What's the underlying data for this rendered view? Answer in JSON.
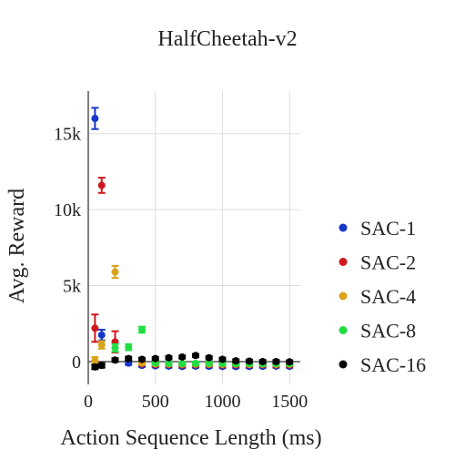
{
  "chart_data": {
    "type": "scatter",
    "title": "HalfCheetah-v2",
    "xlabel": "Action Sequence Length (ms)",
    "ylabel": "Avg. Reward",
    "xlim": [
      0,
      1580
    ],
    "ylim": [
      -1500,
      17800
    ],
    "xticks": [
      0,
      500,
      1000,
      1500
    ],
    "xtick_labels": [
      "0",
      "500",
      "1000",
      "1500"
    ],
    "yticks": [
      0,
      5000,
      10000,
      15000
    ],
    "ytick_labels": [
      "0",
      "5k",
      "10k",
      "15k"
    ],
    "grid": true,
    "legend_position": "right",
    "series": [
      {
        "name": "SAC-1",
        "color": "#1636c8",
        "points": [
          {
            "x": 50,
            "y": 16000,
            "err": 700
          },
          {
            "x": 100,
            "y": 1750,
            "err": 350
          },
          {
            "x": 300,
            "y": -100,
            "err": 120
          },
          {
            "x": 400,
            "y": -250,
            "err": 100
          },
          {
            "x": 500,
            "y": -280,
            "err": 100
          },
          {
            "x": 600,
            "y": -300,
            "err": 100
          },
          {
            "x": 700,
            "y": -320,
            "err": 100
          },
          {
            "x": 800,
            "y": -300,
            "err": 100
          },
          {
            "x": 900,
            "y": -310,
            "err": 100
          },
          {
            "x": 1000,
            "y": -320,
            "err": 100
          },
          {
            "x": 1100,
            "y": -330,
            "err": 100
          },
          {
            "x": 1200,
            "y": -320,
            "err": 100
          },
          {
            "x": 1300,
            "y": -310,
            "err": 100
          },
          {
            "x": 1400,
            "y": -300,
            "err": 100
          },
          {
            "x": 1500,
            "y": -310,
            "err": 100
          }
        ]
      },
      {
        "name": "SAC-2",
        "color": "#d0161e",
        "points": [
          {
            "x": 50,
            "y": 2200,
            "err": 900
          },
          {
            "x": 100,
            "y": 11600,
            "err": 500
          },
          {
            "x": 200,
            "y": 1300,
            "err": 700
          },
          {
            "x": 400,
            "y": -150,
            "err": 100
          },
          {
            "x": 500,
            "y": -200,
            "err": 100
          },
          {
            "x": 600,
            "y": -200,
            "err": 100
          },
          {
            "x": 700,
            "y": -220,
            "err": 100
          },
          {
            "x": 800,
            "y": -210,
            "err": 100
          },
          {
            "x": 900,
            "y": -200,
            "err": 100
          },
          {
            "x": 1000,
            "y": -230,
            "err": 100
          },
          {
            "x": 1100,
            "y": -220,
            "err": 100
          },
          {
            "x": 1200,
            "y": -220,
            "err": 100
          },
          {
            "x": 1300,
            "y": -210,
            "err": 100
          },
          {
            "x": 1400,
            "y": -230,
            "err": 100
          },
          {
            "x": 1500,
            "y": -230,
            "err": 100
          }
        ]
      },
      {
        "name": "SAC-4",
        "color": "#d8a21a",
        "points": [
          {
            "x": 50,
            "y": 50,
            "err": 250
          },
          {
            "x": 100,
            "y": 1100,
            "err": 250
          },
          {
            "x": 200,
            "y": 5900,
            "err": 400
          },
          {
            "x": 400,
            "y": -100,
            "err": 100
          },
          {
            "x": 500,
            "y": -150,
            "err": 100
          },
          {
            "x": 600,
            "y": -160,
            "err": 100
          },
          {
            "x": 700,
            "y": -170,
            "err": 100
          },
          {
            "x": 800,
            "y": -160,
            "err": 100
          },
          {
            "x": 900,
            "y": -170,
            "err": 100
          },
          {
            "x": 1000,
            "y": -180,
            "err": 100
          },
          {
            "x": 1100,
            "y": -170,
            "err": 100
          },
          {
            "x": 1200,
            "y": -180,
            "err": 100
          },
          {
            "x": 1300,
            "y": -170,
            "err": 100
          },
          {
            "x": 1400,
            "y": -180,
            "err": 100
          },
          {
            "x": 1500,
            "y": -170,
            "err": 100
          }
        ]
      },
      {
        "name": "SAC-8",
        "color": "#22dd44",
        "points": [
          {
            "x": 200,
            "y": 900,
            "err": 250
          },
          {
            "x": 300,
            "y": 950,
            "err": 200
          },
          {
            "x": 400,
            "y": 2100,
            "err": 200
          },
          {
            "x": 500,
            "y": -100,
            "err": 100
          },
          {
            "x": 600,
            "y": -120,
            "err": 100
          },
          {
            "x": 700,
            "y": -130,
            "err": 100
          },
          {
            "x": 800,
            "y": -120,
            "err": 100
          },
          {
            "x": 900,
            "y": -110,
            "err": 100
          },
          {
            "x": 1000,
            "y": -130,
            "err": 100
          },
          {
            "x": 1100,
            "y": -140,
            "err": 100
          },
          {
            "x": 1200,
            "y": -130,
            "err": 100
          },
          {
            "x": 1300,
            "y": -140,
            "err": 100
          },
          {
            "x": 1400,
            "y": -130,
            "err": 100
          },
          {
            "x": 1500,
            "y": -140,
            "err": 100
          }
        ]
      },
      {
        "name": "SAC-16",
        "color": "#000000",
        "points": [
          {
            "x": 50,
            "y": -350,
            "err": 150
          },
          {
            "x": 100,
            "y": -250,
            "err": 150
          },
          {
            "x": 200,
            "y": 100,
            "err": 120
          },
          {
            "x": 300,
            "y": 200,
            "err": 120
          },
          {
            "x": 400,
            "y": 150,
            "err": 100
          },
          {
            "x": 500,
            "y": 200,
            "err": 100
          },
          {
            "x": 600,
            "y": 250,
            "err": 100
          },
          {
            "x": 700,
            "y": 300,
            "err": 100
          },
          {
            "x": 800,
            "y": 400,
            "err": 100
          },
          {
            "x": 900,
            "y": 250,
            "err": 100
          },
          {
            "x": 1000,
            "y": 150,
            "err": 100
          },
          {
            "x": 1100,
            "y": 50,
            "err": 100
          },
          {
            "x": 1200,
            "y": 30,
            "err": 100
          },
          {
            "x": 1300,
            "y": 0,
            "err": 100
          },
          {
            "x": 1400,
            "y": 0,
            "err": 100
          },
          {
            "x": 1500,
            "y": -20,
            "err": 100
          }
        ]
      }
    ]
  }
}
